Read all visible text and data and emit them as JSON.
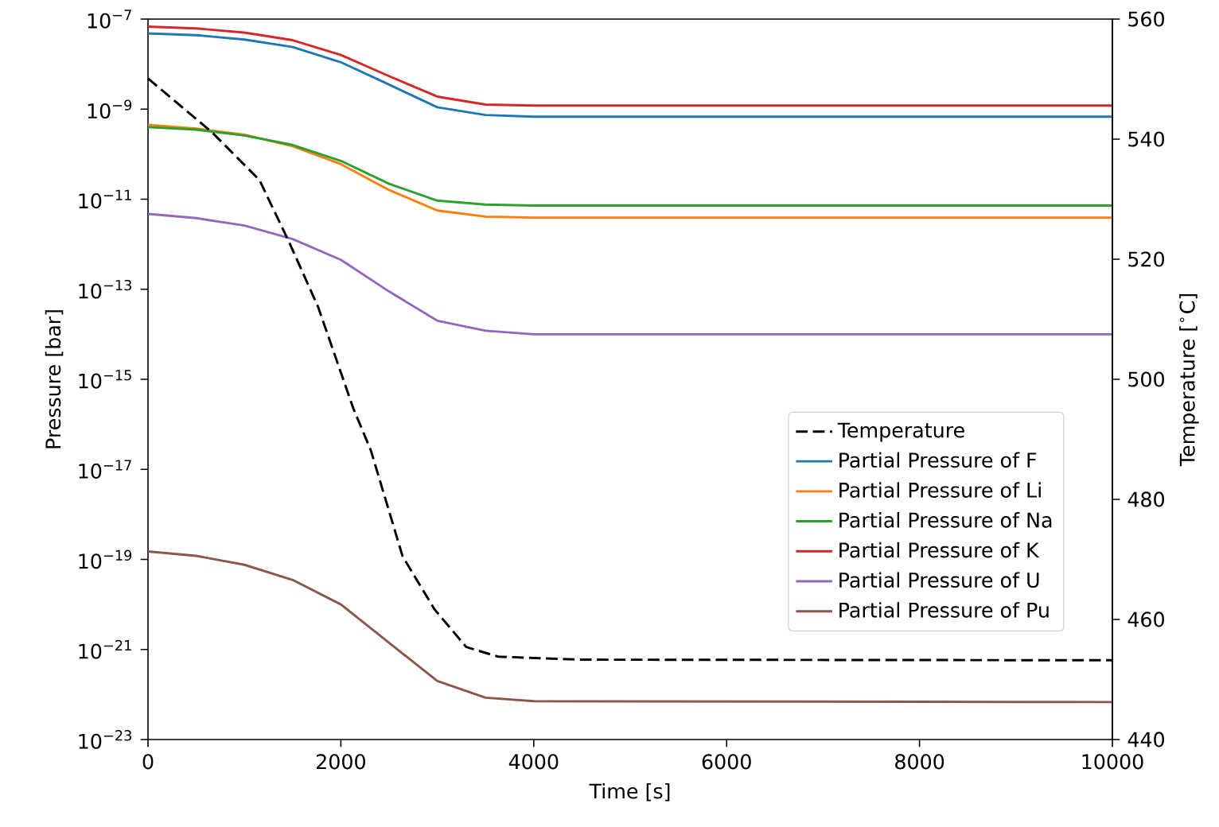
{
  "chart_data": {
    "type": "line",
    "xlabel": "Time [s]",
    "ylabel": "Pressure [bar]",
    "y2label": "Temperature [$^{∘}$C]",
    "log": "y",
    "legend": "right",
    "xlim": [
      0,
      10000
    ],
    "xticks": [
      0,
      2000,
      4000,
      6000,
      8000,
      10000
    ],
    "ylim": [
      1e-23,
      1e-07
    ],
    "yticks": [
      {
        "value": 1e-23,
        "label": "10$^{−23}$"
      },
      {
        "value": 1e-21,
        "label": "10$^{−21}$"
      },
      {
        "value": 1e-19,
        "label": "10$^{−19}$"
      },
      {
        "value": 1e-17,
        "label": "10$^{−17}$"
      },
      {
        "value": 1e-15,
        "label": "10$^{−15}$"
      },
      {
        "value": 1e-13,
        "label": "10$^{−13}$"
      },
      {
        "value": 1e-11,
        "label": "10$^{−11}$"
      },
      {
        "value": 1e-09,
        "label": "10$^{−9}$"
      },
      {
        "value": 1e-07,
        "label": "10$^{−7}$"
      }
    ],
    "y2lim": [
      440,
      560
    ],
    "y2ticks": [
      440,
      460,
      480,
      500,
      520,
      540,
      560
    ],
    "x": [
      0,
      500,
      1000,
      1500,
      2000,
      2500,
      3000,
      3500,
      4000,
      10000
    ],
    "series": [
      {
        "name": "Temperature",
        "color": "#000000",
        "axis": "y2",
        "line_style": "dashed",
        "x": [
          0,
          660,
          1155,
          1470,
          1765,
          2130,
          2310,
          2640,
          2970,
          3300,
          3630,
          4500,
          10000
        ],
        "values": [
          550.1,
          541.2,
          533.2,
          522.6,
          512,
          495.1,
          488.2,
          470.5,
          461.7,
          455.4,
          453.8,
          453.3,
          453.2
        ]
      },
      {
        "name": "Partial Pressure of F",
        "color": "#1f77b4",
        "values": [
          4.8e-08,
          4.4e-08,
          3.5e-08,
          2.4e-08,
          1.1e-08,
          3.5e-09,
          1.1e-09,
          7.4e-10,
          6.8e-10,
          6.8e-10
        ]
      },
      {
        "name": "Partial Pressure of Li",
        "color": "#ff7f0e",
        "values": [
          4.5e-10,
          3.7e-10,
          2.7e-10,
          1.5e-10,
          6e-11,
          1.6e-11,
          5.6e-12,
          4.1e-12,
          3.9e-12,
          3.9e-12
        ]
      },
      {
        "name": "Partial Pressure of Na",
        "color": "#2ca02c",
        "values": [
          4e-10,
          3.5e-10,
          2.6e-10,
          1.6e-10,
          7.1e-11,
          2.2e-11,
          9.3e-12,
          7.6e-12,
          7.2e-12,
          7.2e-12
        ]
      },
      {
        "name": "Partial Pressure of K",
        "color": "#d62728",
        "values": [
          6.8e-08,
          6.2e-08,
          5e-08,
          3.4e-08,
          1.6e-08,
          5.4e-09,
          1.9e-09,
          1.26e-09,
          1.2e-09,
          1.2e-09
        ]
      },
      {
        "name": "Partial Pressure of U",
        "color": "#9467bd",
        "values": [
          4.7e-12,
          3.8e-12,
          2.6e-12,
          1.3e-12,
          4.5e-13,
          8.9e-14,
          2e-14,
          1.2e-14,
          1e-14,
          1e-14
        ]
      },
      {
        "name": "Partial Pressure of Pu",
        "color": "#8c564b",
        "values": [
          1.5e-19,
          1.2e-19,
          7.6e-20,
          3.5e-20,
          1e-20,
          1.4e-21,
          2e-22,
          8.5e-23,
          7.1e-23,
          6.8e-23
        ]
      }
    ]
  }
}
